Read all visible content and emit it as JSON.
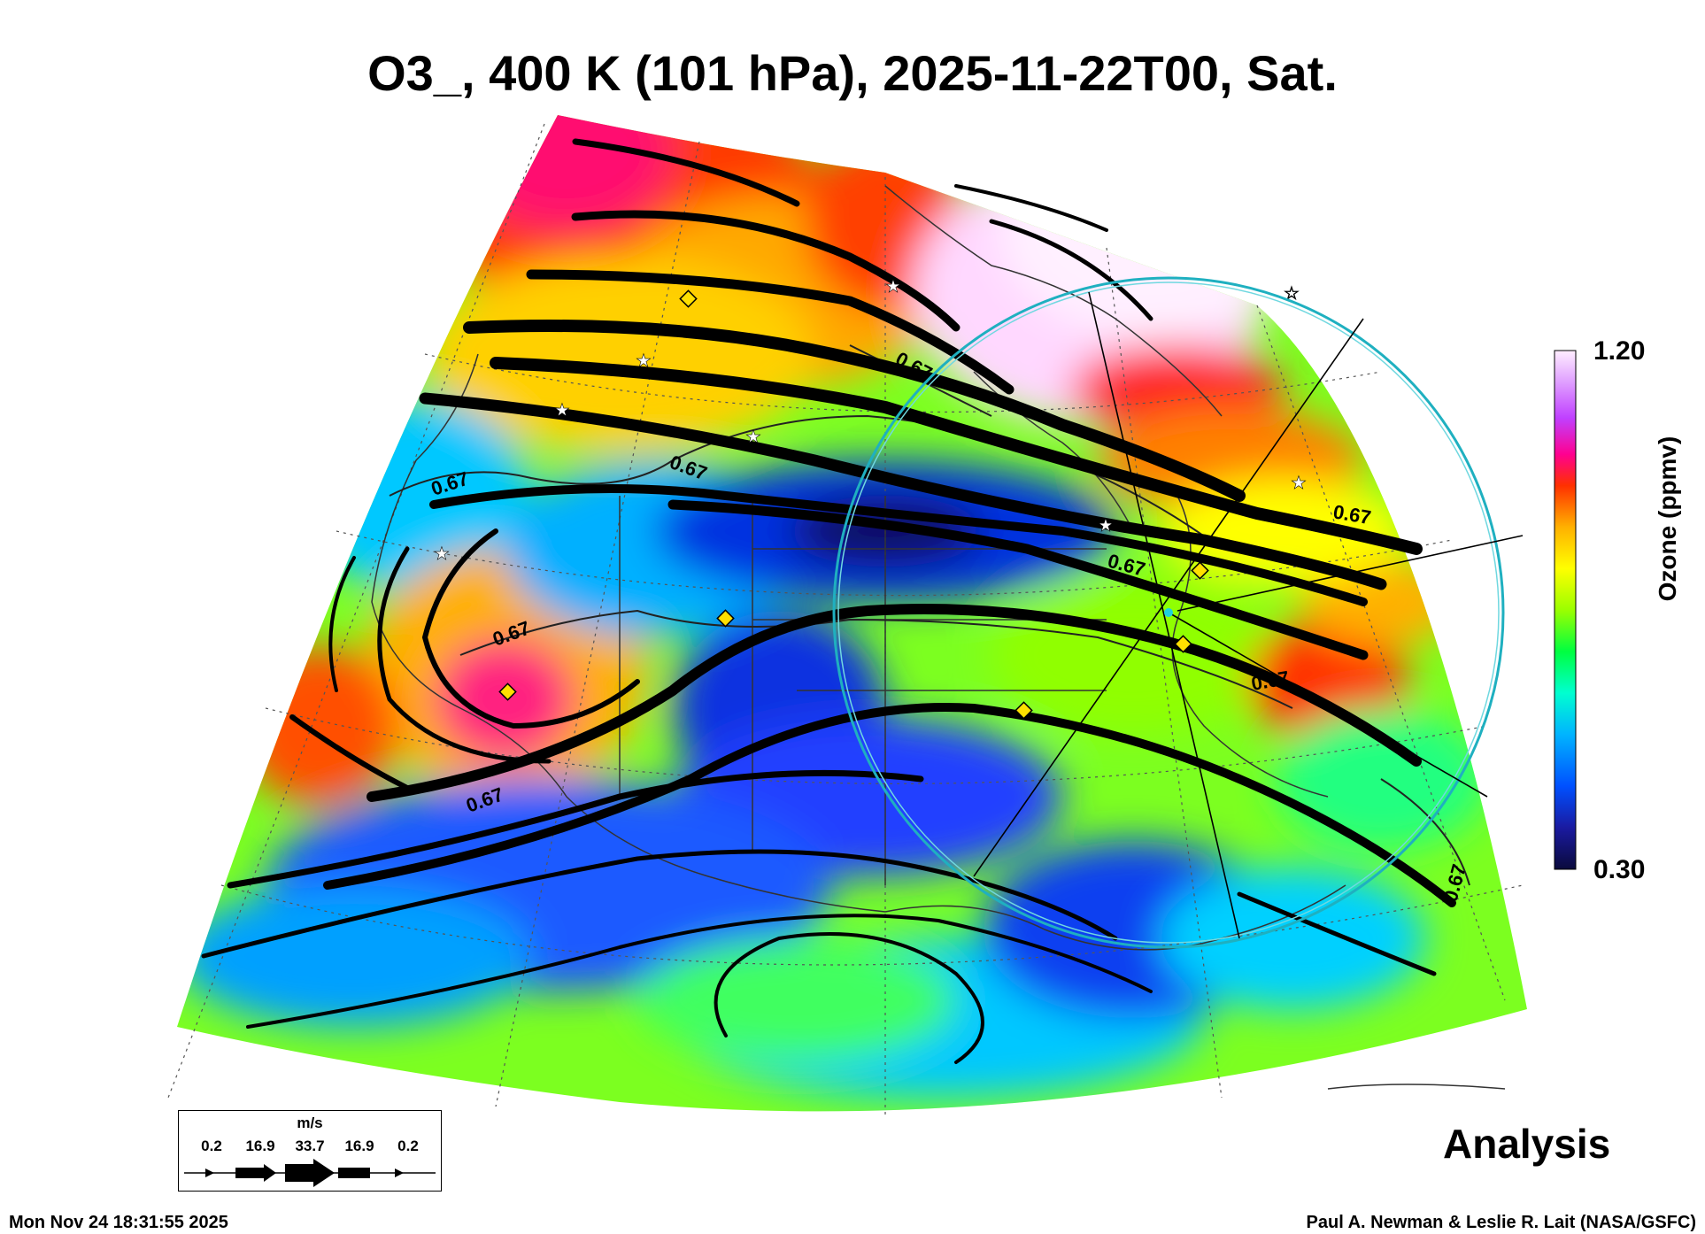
{
  "title": "O3_, 400 K (101 hPa), 2025-11-22T00, Sat.",
  "colorbar": {
    "title": "Ozone (ppmv)",
    "max_label": "1.20",
    "min_label": "0.30",
    "stops": [
      "#0a0a3c",
      "#1a1aa0",
      "#0050ff",
      "#00b4ff",
      "#00ffd0",
      "#00ff40",
      "#9bff00",
      "#ffff00",
      "#ffb000",
      "#ff3000",
      "#ff0090",
      "#c040ff",
      "#e0a0ff",
      "#ffeeff"
    ]
  },
  "contour_labels": [
    "0.67",
    "0.67",
    "0.67",
    "0.67",
    "0.67",
    "0.67",
    "0.67",
    "0.67",
    "0.67"
  ],
  "wind_legend": {
    "unit": "m/s",
    "values": [
      "0.2",
      "16.9",
      "33.7",
      "16.9",
      "0.2"
    ]
  },
  "analysis_label": "Analysis",
  "timestamp": "Mon Nov 24 18:31:55 2025",
  "credit": "Paul A. Newman & Leslie R. Lait (NASA/GSFC)",
  "icons": [
    "star-marker-icon",
    "diamond-marker-icon",
    "wind-arrow-icon"
  ]
}
